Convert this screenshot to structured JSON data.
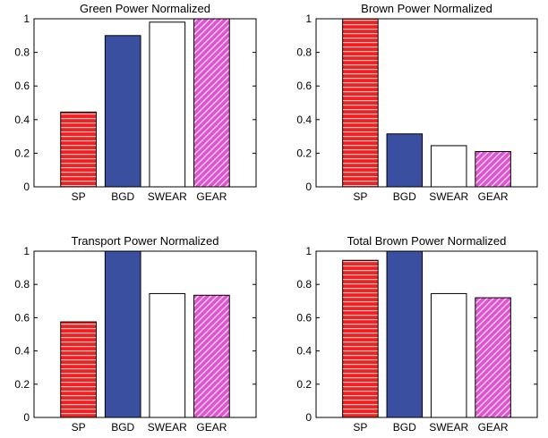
{
  "styles": {
    "SP": {
      "fill": "#ee2222",
      "pattern": "horizontal-stripes",
      "stripe": "#ffc0c0"
    },
    "BGD": {
      "fill": "#3a4fa0",
      "pattern": "solid"
    },
    "SWEAR": {
      "fill": "#ffffff",
      "pattern": "solid"
    },
    "GEAR": {
      "fill": "#dd55cc",
      "pattern": "diagonal-hatch",
      "stripe": "#ffd0f5"
    }
  },
  "chart_data": [
    {
      "type": "bar",
      "title": "Green Power Normalized",
      "categories": [
        "SP",
        "BGD",
        "SWEAR",
        "GEAR"
      ],
      "values": [
        0.445,
        0.9,
        0.98,
        1.0
      ],
      "ylim": [
        0,
        1
      ],
      "yticks": [
        "0",
        "0.2",
        "0.4",
        "0.6",
        "0.8",
        "1"
      ],
      "grid": false
    },
    {
      "type": "bar",
      "title": "Brown Power Normalized",
      "categories": [
        "SP",
        "BGD",
        "SWEAR",
        "GEAR"
      ],
      "values": [
        1.0,
        0.315,
        0.245,
        0.21
      ],
      "ylim": [
        0,
        1
      ],
      "yticks": [
        "0",
        "0.2",
        "0.4",
        "0.6",
        "0.8",
        "1"
      ],
      "grid": false
    },
    {
      "type": "bar",
      "title": "Transport Power Normalized",
      "categories": [
        "SP",
        "BGD",
        "SWEAR",
        "GEAR"
      ],
      "values": [
        0.575,
        1.0,
        0.745,
        0.735
      ],
      "ylim": [
        0,
        1
      ],
      "yticks": [
        "0",
        "0.2",
        "0.4",
        "0.6",
        "0.8",
        "1"
      ],
      "grid": false
    },
    {
      "type": "bar",
      "title": "Total Brown Power Normalized",
      "categories": [
        "SP",
        "BGD",
        "SWEAR",
        "GEAR"
      ],
      "values": [
        0.945,
        1.0,
        0.745,
        0.72
      ],
      "ylim": [
        0,
        1
      ],
      "yticks": [
        "0",
        "0.2",
        "0.4",
        "0.6",
        "0.8",
        "1"
      ],
      "grid": false
    }
  ]
}
